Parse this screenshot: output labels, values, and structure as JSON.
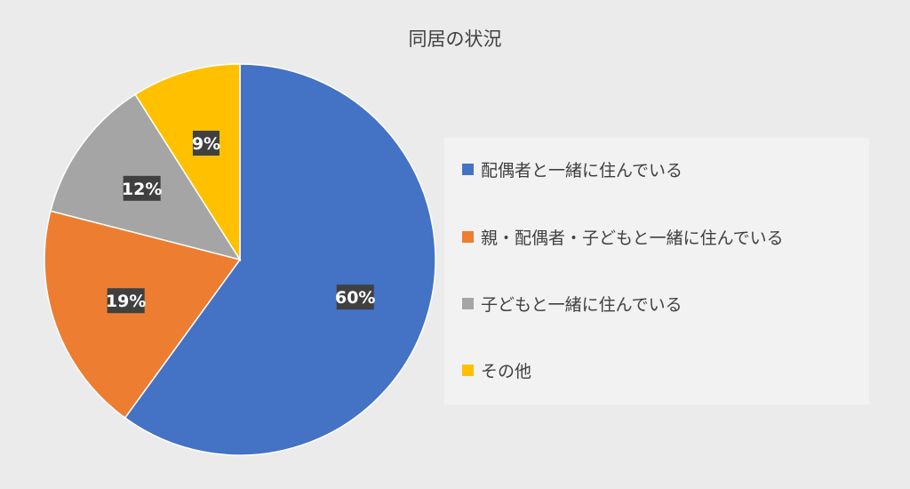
{
  "chart_data": {
    "type": "pie",
    "title": "同居の状況",
    "categories": [
      "配偶者と一緒に住んでいる",
      "親・配偶者・子どもと一緒に住んでいる",
      "子どもと一緒に住んでいる",
      "その他"
    ],
    "values": [
      60,
      19,
      12,
      9
    ],
    "data_labels": [
      "60%",
      "19%",
      "12%",
      "9%"
    ],
    "colors": [
      "#4472c4",
      "#ed7d31",
      "#a5a5a5",
      "#ffc000"
    ],
    "legend_placement": "right",
    "data_label_background": "#404040"
  }
}
